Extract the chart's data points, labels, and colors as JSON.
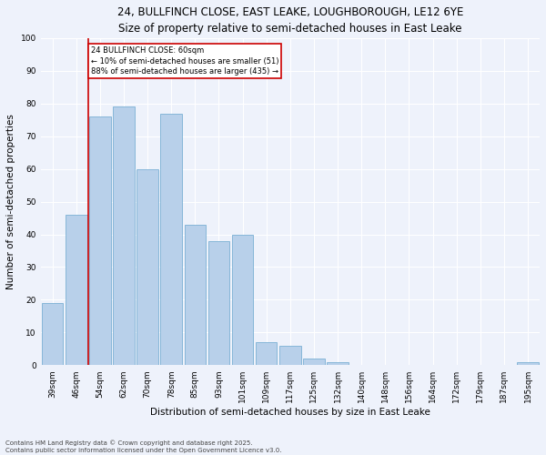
{
  "title": "24, BULLFINCH CLOSE, EAST LEAKE, LOUGHBOROUGH, LE12 6YE",
  "subtitle": "Size of property relative to semi-detached houses in East Leake",
  "xlabel": "Distribution of semi-detached houses by size in East Leake",
  "ylabel": "Number of semi-detached properties",
  "categories": [
    "39sqm",
    "46sqm",
    "54sqm",
    "62sqm",
    "70sqm",
    "78sqm",
    "85sqm",
    "93sqm",
    "101sqm",
    "109sqm",
    "117sqm",
    "125sqm",
    "132sqm",
    "140sqm",
    "148sqm",
    "156sqm",
    "164sqm",
    "172sqm",
    "179sqm",
    "187sqm",
    "195sqm"
  ],
  "values": [
    19,
    46,
    76,
    79,
    60,
    77,
    43,
    38,
    40,
    7,
    6,
    2,
    1,
    0,
    0,
    0,
    0,
    0,
    0,
    0,
    1
  ],
  "bar_color": "#b8d0ea",
  "bar_edge_color": "#7aafd4",
  "annotation_text": "24 BULLFINCH CLOSE: 60sqm\n← 10% of semi-detached houses are smaller (51)\n88% of semi-detached houses are larger (435) →",
  "annotation_box_color": "#ffffff",
  "annotation_box_edge": "#cc0000",
  "vline_color": "#cc0000",
  "ylim": [
    0,
    100
  ],
  "yticks": [
    0,
    10,
    20,
    30,
    40,
    50,
    60,
    70,
    80,
    90,
    100
  ],
  "footer1": "Contains HM Land Registry data © Crown copyright and database right 2025.",
  "footer2": "Contains public sector information licensed under the Open Government Licence v3.0.",
  "bg_color": "#eef2fb",
  "grid_color": "#ffffff",
  "title_fontsize": 8.5,
  "subtitle_fontsize": 7.5,
  "ylabel_fontsize": 7.5,
  "xlabel_fontsize": 7.5,
  "tick_fontsize": 6.5,
  "annotation_fontsize": 6.0,
  "footer_fontsize": 5.0
}
